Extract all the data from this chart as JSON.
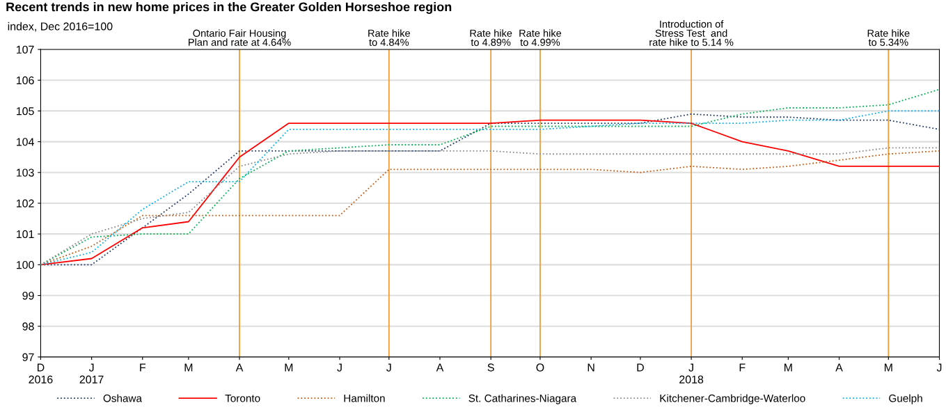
{
  "chart_data": {
    "type": "line",
    "title": "Recent trends in new home prices in the Greater Golden Horseshoe region",
    "ylabel": "index, Dec 2016=100",
    "x": [
      "2016-12",
      "2017-01",
      "2017-02",
      "2017-03",
      "2017-04",
      "2017-05",
      "2017-06",
      "2017-07",
      "2017-08",
      "2017-09",
      "2017-10",
      "2017-11",
      "2017-12",
      "2018-01",
      "2018-02",
      "2018-03",
      "2018-04",
      "2018-05",
      "2018-06"
    ],
    "xlim": [
      "2016-12",
      "2018-06"
    ],
    "xticks": [
      {
        "value": "2016-12",
        "label": "D\n2016"
      },
      {
        "value": "2017-01",
        "label": "J\n2017"
      },
      {
        "value": "2017-02",
        "label": "F"
      },
      {
        "value": "2017-03",
        "label": "M"
      },
      {
        "value": "2017-04",
        "label": "A"
      },
      {
        "value": "2017-05",
        "label": "M"
      },
      {
        "value": "2017-06",
        "label": "J"
      },
      {
        "value": "2017-07",
        "label": "J"
      },
      {
        "value": "2017-08",
        "label": "A"
      },
      {
        "value": "2017-09",
        "label": "S"
      },
      {
        "value": "2017-10",
        "label": "O"
      },
      {
        "value": "2017-11",
        "label": "N"
      },
      {
        "value": "2017-12",
        "label": "D"
      },
      {
        "value": "2018-01",
        "label": "J\n2018"
      },
      {
        "value": "2018-02",
        "label": "F"
      },
      {
        "value": "2018-03",
        "label": "M"
      },
      {
        "value": "2018-04",
        "label": "A"
      },
      {
        "value": "2018-05",
        "label": "M"
      },
      {
        "value": "2018-06",
        "label": "J"
      }
    ],
    "ylim": [
      97,
      107
    ],
    "yticks": [
      97,
      98,
      99,
      100,
      101,
      102,
      103,
      104,
      105,
      106,
      107
    ],
    "grid": "y",
    "legend": "bottom",
    "marker": "none",
    "series": [
      {
        "name": "Oshawa",
        "color": "#1f3864",
        "line_style": "dotted",
        "values": [
          100,
          100,
          101.2,
          102.3,
          103.7,
          103.7,
          103.7,
          103.7,
          103.7,
          104.6,
          104.6,
          104.6,
          104.6,
          104.9,
          104.8,
          104.8,
          104.7,
          104.7,
          104.4
        ]
      },
      {
        "name": "Toronto",
        "color": "#ff0000",
        "line_style": "solid",
        "values": [
          100,
          100.2,
          101.2,
          101.4,
          103.5,
          104.6,
          104.6,
          104.6,
          104.6,
          104.6,
          104.7,
          104.7,
          104.7,
          104.6,
          104.0,
          103.7,
          103.2,
          103.2,
          103.2
        ]
      },
      {
        "name": "Hamilton",
        "color": "#c55a11",
        "line_style": "dotted",
        "values": [
          100,
          100.6,
          101.6,
          101.6,
          101.6,
          101.6,
          101.6,
          103.1,
          103.1,
          103.1,
          103.1,
          103.1,
          103.0,
          103.2,
          103.1,
          103.2,
          103.4,
          103.6,
          103.7
        ]
      },
      {
        "name": "St. Catharines-Niagara",
        "color": "#00b050",
        "line_style": "dotted",
        "values": [
          100,
          100.9,
          101.0,
          101.0,
          102.8,
          103.7,
          103.8,
          103.9,
          103.9,
          104.5,
          104.5,
          104.5,
          104.5,
          104.5,
          104.9,
          105.1,
          105.1,
          105.2,
          105.7
        ]
      },
      {
        "name": "Kitchener-Cambridge-Waterloo",
        "color": "#8c8c8c",
        "line_style": "dotted",
        "values": [
          100,
          101.0,
          101.5,
          101.7,
          103.2,
          103.6,
          103.7,
          103.7,
          103.7,
          103.7,
          103.6,
          103.6,
          103.6,
          103.6,
          103.6,
          103.6,
          103.6,
          103.8,
          103.8
        ]
      },
      {
        "name": "Guelph",
        "color": "#00b0f0",
        "line_style": "dotted",
        "values": [
          100,
          100.4,
          101.8,
          102.7,
          102.7,
          104.4,
          104.4,
          104.4,
          104.4,
          104.4,
          104.4,
          104.5,
          104.6,
          104.6,
          104.6,
          104.7,
          104.7,
          105.0,
          105.0
        ]
      }
    ],
    "ref_lines": [
      {
        "axis": "x",
        "value": "2017-04",
        "label": "Ontario Fair Housing\nPlan and rate at 4.64%",
        "color": "#f39c34"
      },
      {
        "axis": "x",
        "value": "2017-07",
        "label": "Rate hike\nto 4.84%",
        "color": "#f39c34"
      },
      {
        "axis": "x",
        "value": "2017-09",
        "label": "Rate hike\nto 4.89%",
        "color": "#f39c34"
      },
      {
        "axis": "x",
        "value": "2017-10",
        "label": "Rate hike\nto 4.99%",
        "color": "#f39c34"
      },
      {
        "axis": "x",
        "value": "2018-01",
        "label": "Introduction of\nStress Test  and\nrate hike to 5.14 %",
        "color": "#f39c34"
      },
      {
        "axis": "x",
        "value": "2018-05",
        "label": "Rate hike\nto 5.34%",
        "color": "#f39c34"
      }
    ]
  }
}
